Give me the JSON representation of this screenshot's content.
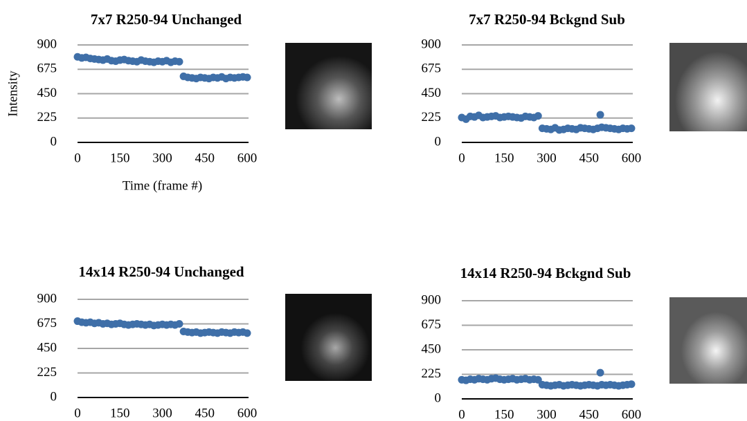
{
  "chart_data": [
    {
      "type": "scatter",
      "title": "7x7 R250-94 Unchanged",
      "x_label": "Time (frame #)",
      "y_label": "Intensity",
      "color": "#3f6fa8",
      "xlim": [
        0,
        600
      ],
      "ylim": [
        0,
        900
      ],
      "xticks": [
        0,
        150,
        300,
        450,
        600
      ],
      "yticks": [
        0,
        225,
        450,
        675,
        900
      ],
      "grid": true,
      "x": [
        0,
        15,
        30,
        45,
        60,
        75,
        90,
        105,
        120,
        135,
        150,
        165,
        180,
        195,
        210,
        225,
        240,
        255,
        270,
        285,
        300,
        315,
        330,
        345,
        360,
        375,
        390,
        405,
        420,
        435,
        450,
        465,
        480,
        495,
        510,
        525,
        540,
        555,
        570,
        585,
        600
      ],
      "values": [
        790,
        780,
        785,
        775,
        770,
        765,
        760,
        770,
        755,
        750,
        760,
        765,
        755,
        750,
        745,
        760,
        750,
        745,
        740,
        750,
        745,
        755,
        740,
        750,
        745,
        610,
        600,
        595,
        590,
        600,
        595,
        590,
        600,
        595,
        605,
        590,
        600,
        595,
        600,
        605,
        600
      ]
    },
    {
      "type": "scatter",
      "title": "7x7 R250-94 Bckgnd Sub",
      "color": "#3f6fa8",
      "xlim": [
        0,
        600
      ],
      "ylim": [
        0,
        900
      ],
      "xticks": [
        0,
        150,
        300,
        450,
        600
      ],
      "yticks": [
        0,
        225,
        450,
        675,
        900
      ],
      "grid": true,
      "x": [
        0,
        15,
        30,
        45,
        60,
        75,
        90,
        105,
        120,
        135,
        150,
        165,
        180,
        195,
        210,
        225,
        240,
        255,
        270,
        285,
        300,
        315,
        330,
        345,
        360,
        375,
        390,
        405,
        420,
        435,
        450,
        465,
        480,
        495,
        510,
        525,
        540,
        555,
        570,
        585,
        600,
        490
      ],
      "values": [
        230,
        215,
        240,
        235,
        250,
        230,
        235,
        240,
        245,
        230,
        235,
        240,
        235,
        230,
        225,
        240,
        235,
        230,
        245,
        130,
        125,
        120,
        135,
        115,
        120,
        130,
        125,
        120,
        135,
        130,
        125,
        120,
        130,
        140,
        135,
        130,
        125,
        120,
        130,
        125,
        130,
        255
      ]
    },
    {
      "type": "scatter",
      "title": "14x14 R250-94 Unchanged",
      "color": "#3f6fa8",
      "xlim": [
        0,
        600
      ],
      "ylim": [
        0,
        900
      ],
      "xticks": [
        0,
        150,
        300,
        450,
        600
      ],
      "yticks": [
        0,
        225,
        450,
        675,
        900
      ],
      "grid": true,
      "x": [
        0,
        15,
        30,
        45,
        60,
        75,
        90,
        105,
        120,
        135,
        150,
        165,
        180,
        195,
        210,
        225,
        240,
        255,
        270,
        285,
        300,
        315,
        330,
        345,
        360,
        375,
        390,
        405,
        420,
        435,
        450,
        465,
        480,
        495,
        510,
        525,
        540,
        555,
        570,
        585,
        600
      ],
      "values": [
        700,
        690,
        685,
        690,
        680,
        685,
        675,
        680,
        670,
        675,
        680,
        670,
        665,
        670,
        675,
        670,
        665,
        670,
        660,
        665,
        670,
        665,
        670,
        665,
        675,
        605,
        600,
        595,
        600,
        590,
        595,
        600,
        595,
        590,
        600,
        595,
        590,
        600,
        595,
        600,
        590
      ]
    },
    {
      "type": "scatter",
      "title": "14x14 R250-94 Bckgnd Sub",
      "color": "#3f6fa8",
      "xlim": [
        0,
        600
      ],
      "ylim": [
        0,
        900
      ],
      "xticks": [
        0,
        150,
        300,
        450,
        600
      ],
      "yticks": [
        0,
        225,
        450,
        675,
        900
      ],
      "grid": true,
      "x": [
        0,
        15,
        30,
        45,
        60,
        75,
        90,
        105,
        120,
        135,
        150,
        165,
        180,
        195,
        210,
        225,
        240,
        255,
        270,
        285,
        300,
        315,
        330,
        345,
        360,
        375,
        390,
        405,
        420,
        435,
        450,
        465,
        480,
        495,
        510,
        525,
        540,
        555,
        570,
        585,
        600,
        490
      ],
      "values": [
        175,
        170,
        180,
        175,
        185,
        180,
        175,
        185,
        190,
        180,
        175,
        180,
        185,
        175,
        180,
        185,
        175,
        180,
        175,
        130,
        125,
        120,
        125,
        130,
        120,
        125,
        130,
        125,
        120,
        125,
        130,
        125,
        120,
        130,
        125,
        130,
        125,
        120,
        125,
        130,
        135,
        240
      ]
    }
  ]
}
